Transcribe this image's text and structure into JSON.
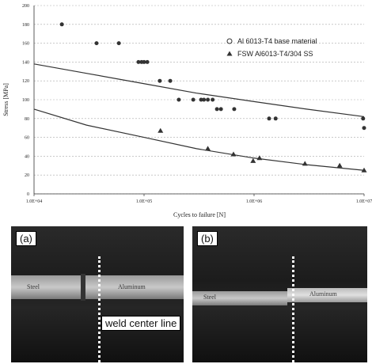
{
  "chart_data": {
    "type": "scatter",
    "x_label": "Cycles to failure [N]",
    "y_label": "Stress [MPa]",
    "log_x": true,
    "grid": true,
    "xlim": [
      10000,
      10000000
    ],
    "xticks": [
      {
        "value": 10000,
        "label": "1.0E+04"
      },
      {
        "value": 100000,
        "label": "1.0E+05"
      },
      {
        "value": 1000000,
        "label": "1.0E+06"
      },
      {
        "value": 10000000,
        "label": "1.0E+07"
      }
    ],
    "ylim": [
      0,
      200
    ],
    "yticks": [
      0,
      20,
      40,
      60,
      80,
      100,
      120,
      140,
      160,
      180,
      200
    ],
    "series": [
      {
        "name": "Al 6013-T4 base material",
        "marker": "circle",
        "color": "#333333",
        "x": [
          17900,
          37000,
          59000,
          89000,
          95000,
          100000,
          107000,
          139000,
          173000,
          207000,
          280000,
          330000,
          350000,
          380000,
          420000,
          460000,
          500000,
          660000,
          1370000,
          1570000,
          9800000,
          10000000
        ],
        "values": [
          180,
          160,
          160,
          140,
          140,
          140,
          140,
          120,
          120,
          100,
          100,
          100,
          100,
          100,
          100,
          90,
          90,
          90,
          80,
          80,
          80,
          70
        ]
      },
      {
        "name": "FSW Al6013-T4/304 SS",
        "marker": "triangle",
        "color": "#333333",
        "x": [
          141000,
          380000,
          650000,
          980000,
          1120000,
          2900000,
          6000000,
          10000000
        ],
        "values": [
          67,
          48,
          42,
          35,
          38,
          32,
          30,
          25
        ]
      },
      {
        "marker": "line",
        "color": "#333333",
        "x": [
          10000,
          30000,
          100000,
          300000,
          1000000,
          3000000,
          10000000
        ],
        "values": [
          138,
          128,
          117,
          107,
          98,
          90,
          82
        ]
      },
      {
        "marker": "line",
        "color": "#333333",
        "x": [
          10000,
          30000,
          100000,
          300000,
          1000000,
          3000000,
          10000000
        ],
        "values": [
          90,
          73,
          60,
          48,
          38,
          31,
          25
        ]
      }
    ]
  },
  "photos": [
    {
      "label": "(a)",
      "left_material": "Steel",
      "right_material": "Aluminum",
      "annotation": "weld center line"
    },
    {
      "label": "(b)",
      "left_material": "Steel",
      "right_material": "Aluminum"
    }
  ]
}
